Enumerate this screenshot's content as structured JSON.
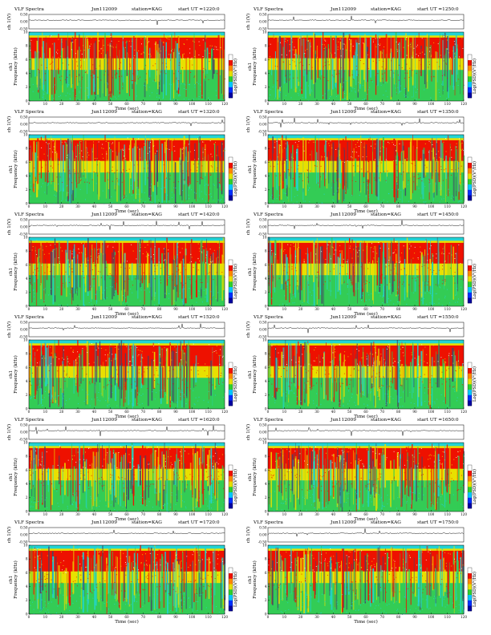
{
  "panels": [
    {
      "title": "VLF Spectra",
      "date": "Jun112009",
      "station": "station=KAG",
      "start": "start  UT  =1220:0"
    },
    {
      "title": "VLF Spectra",
      "date": "Jun112009",
      "station": "station=KAG",
      "start": "start  UT  =1250:0"
    },
    {
      "title": "VLF Spectra",
      "date": "Jun112009",
      "station": "station=KAG",
      "start": "start  UT  =1320:0"
    },
    {
      "title": "VLF Spectra",
      "date": "Jun112009",
      "station": "station=KAG",
      "start": "start  UT  =1350:0"
    },
    {
      "title": "VLF Spectra",
      "date": "Jun112009",
      "station": "station=KAG",
      "start": "start  UT  =1420:0"
    },
    {
      "title": "VLF Spectra",
      "date": "Jun112009",
      "station": "station=KAG",
      "start": "start  UT  =1450:0"
    },
    {
      "title": "VLF Spectra",
      "date": "Jun112009",
      "station": "station=KAG",
      "start": "start  UT  =1520:0"
    },
    {
      "title": "VLF Spectra",
      "date": "Jun112009",
      "station": "station=KAG",
      "start": "start  UT  =1550:0"
    },
    {
      "title": "VLF Spectra",
      "date": "Jun112009",
      "station": "station=KAG",
      "start": "start  UT  =1620:0"
    },
    {
      "title": "VLF Spectra",
      "date": "Jun112009",
      "station": "station=KAG",
      "start": "start  UT  =1650:0"
    },
    {
      "title": "VLF Spectra",
      "date": "Jun112009",
      "station": "station=KAG",
      "start": "start  UT  =1720:0"
    },
    {
      "title": "VLF Spectra",
      "date": "Jun112009",
      "station": "station=KAG",
      "start": "start  UT  =1750:0"
    }
  ],
  "labels": {
    "waveform_ylabel": "ch 1(V)",
    "spec_ylabel_line1": "ch1",
    "spec_ylabel_line2": "Frequency  (kHz)",
    "xlabel": "Time  (sec)",
    "colorbar_label": "Log(PSD)(V²/Hz)"
  },
  "colors": {
    "background_band": "#22d4d4",
    "low_freq": "#33cc55",
    "mid_freq": "#e8e000",
    "high_freq": "#ee1100",
    "colorbar": [
      "#0000a0",
      "#0030ff",
      "#00c8ff",
      "#2ed02e",
      "#e8e000",
      "#ff8800",
      "#ee1100",
      "#ffffff"
    ]
  },
  "chart_data": [
    {
      "type": "heatmap",
      "title": "VLF Spectra  Jun112009  station=KAG  start  UT  =1220:0",
      "xlabel": "Time  (sec)",
      "ylabel": "Frequency  (kHz)",
      "xlim": [
        0,
        120
      ],
      "ylim": [
        0,
        10
      ],
      "x_ticks": [
        0,
        10,
        20,
        30,
        40,
        50,
        60,
        70,
        80,
        90,
        100,
        110,
        120
      ],
      "y_ticks": [
        0,
        2,
        4,
        6,
        8,
        10
      ],
      "waveform_ylim": [
        -0.5,
        0.5
      ],
      "waveform_ticks": [
        "0.50",
        "0.00",
        "-0.50"
      ]
    },
    {
      "type": "heatmap",
      "title": "VLF Spectra  Jun112009  station=KAG  start  UT  =1250:0",
      "xlabel": "Time  (sec)",
      "ylabel": "Frequency  (kHz)",
      "xlim": [
        0,
        120
      ],
      "ylim": [
        0,
        10
      ],
      "x_ticks": [
        0,
        10,
        20,
        30,
        40,
        50,
        60,
        70,
        80,
        90,
        100,
        110,
        120
      ],
      "y_ticks": [
        0,
        2,
        4,
        6,
        8,
        10
      ],
      "waveform_ylim": [
        -0.5,
        0.5
      ],
      "waveform_ticks": [
        "0.50",
        "0.00",
        "-0.50"
      ]
    },
    {
      "type": "heatmap",
      "title": "VLF Spectra  Jun112009  station=KAG  start  UT  =1320:0",
      "xlabel": "Time  (sec)",
      "ylabel": "Frequency  (kHz)",
      "xlim": [
        0,
        120
      ],
      "ylim": [
        0,
        10
      ],
      "x_ticks": [
        0,
        10,
        20,
        30,
        40,
        50,
        60,
        70,
        80,
        90,
        100,
        110,
        120
      ],
      "y_ticks": [
        0,
        2,
        4,
        6,
        8,
        10
      ],
      "waveform_ylim": [
        -0.5,
        0.5
      ],
      "waveform_ticks": [
        "0.50",
        "0.00",
        "-0.50"
      ]
    },
    {
      "type": "heatmap",
      "title": "VLF Spectra  Jun112009  station=KAG  start  UT  =1350:0",
      "xlabel": "Time  (sec)",
      "ylabel": "Frequency  (kHz)",
      "xlim": [
        0,
        120
      ],
      "ylim": [
        0,
        10
      ],
      "x_ticks": [
        0,
        10,
        20,
        30,
        40,
        50,
        60,
        70,
        80,
        90,
        100,
        110,
        120
      ],
      "y_ticks": [
        0,
        2,
        4,
        6,
        8,
        10
      ],
      "waveform_ylim": [
        -0.5,
        0.5
      ],
      "waveform_ticks": [
        "0.50",
        "0.00",
        "-0.50"
      ]
    },
    {
      "type": "heatmap",
      "title": "VLF Spectra  Jun112009  station=KAG  start  UT  =1420:0",
      "xlabel": "Time  (sec)",
      "ylabel": "Frequency  (kHz)",
      "xlim": [
        0,
        120
      ],
      "ylim": [
        0,
        10
      ],
      "x_ticks": [
        0,
        10,
        20,
        30,
        40,
        50,
        60,
        70,
        80,
        90,
        100,
        110,
        120
      ],
      "y_ticks": [
        0,
        2,
        4,
        6,
        8,
        10
      ],
      "waveform_ylim": [
        -0.5,
        0.5
      ],
      "waveform_ticks": [
        "0.50",
        "0.00",
        "-0.50"
      ]
    },
    {
      "type": "heatmap",
      "title": "VLF Spectra  Jun112009  station=KAG  start  UT  =1450:0",
      "xlabel": "Time  (sec)",
      "ylabel": "Frequency  (kHz)",
      "xlim": [
        0,
        120
      ],
      "ylim": [
        0,
        10
      ],
      "x_ticks": [
        0,
        10,
        20,
        30,
        40,
        50,
        60,
        70,
        80,
        90,
        100,
        110,
        120
      ],
      "y_ticks": [
        0,
        2,
        4,
        6,
        8,
        10
      ],
      "waveform_ylim": [
        -0.5,
        0.5
      ],
      "waveform_ticks": [
        "0.50",
        "0.00",
        "-0.50"
      ]
    },
    {
      "type": "heatmap",
      "title": "VLF Spectra  Jun112009  station=KAG  start  UT  =1520:0",
      "xlabel": "Time  (sec)",
      "ylabel": "Frequency  (kHz)",
      "xlim": [
        0,
        120
      ],
      "ylim": [
        0,
        10
      ],
      "x_ticks": [
        0,
        10,
        20,
        30,
        40,
        50,
        60,
        70,
        80,
        90,
        100,
        110,
        120
      ],
      "y_ticks": [
        0,
        2,
        4,
        6,
        8,
        10
      ],
      "waveform_ylim": [
        -0.5,
        0.5
      ],
      "waveform_ticks": [
        "0.50",
        "0.00",
        "-0.50"
      ]
    },
    {
      "type": "heatmap",
      "title": "VLF Spectra  Jun112009  station=KAG  start  UT  =1550:0",
      "xlabel": "Time  (sec)",
      "ylabel": "Frequency  (kHz)",
      "xlim": [
        0,
        120
      ],
      "ylim": [
        0,
        10
      ],
      "x_ticks": [
        0,
        10,
        20,
        30,
        40,
        50,
        60,
        70,
        80,
        90,
        100,
        110,
        120
      ],
      "y_ticks": [
        0,
        2,
        4,
        6,
        8,
        10
      ],
      "waveform_ylim": [
        -0.5,
        0.5
      ],
      "waveform_ticks": [
        "0.50",
        "0.00",
        "-0.50"
      ]
    },
    {
      "type": "heatmap",
      "title": "VLF Spectra  Jun112009  station=KAG  start  UT  =1620:0",
      "xlabel": "Time  (sec)",
      "ylabel": "Frequency  (kHz)",
      "xlim": [
        0,
        120
      ],
      "ylim": [
        0,
        10
      ],
      "x_ticks": [
        0,
        10,
        20,
        30,
        40,
        50,
        60,
        70,
        80,
        90,
        100,
        110,
        120
      ],
      "y_ticks": [
        0,
        2,
        4,
        6,
        8,
        10
      ],
      "waveform_ylim": [
        -0.5,
        0.5
      ],
      "waveform_ticks": [
        "0.50",
        "0.00",
        "-0.50"
      ]
    },
    {
      "type": "heatmap",
      "title": "VLF Spectra  Jun112009  station=KAG  start  UT  =1650:0",
      "xlabel": "Time  (sec)",
      "ylabel": "Frequency  (kHz)",
      "xlim": [
        0,
        120
      ],
      "ylim": [
        0,
        10
      ],
      "x_ticks": [
        0,
        10,
        20,
        30,
        40,
        50,
        60,
        70,
        80,
        90,
        100,
        110,
        120
      ],
      "y_ticks": [
        0,
        2,
        4,
        6,
        8,
        10
      ],
      "waveform_ylim": [
        -0.5,
        0.5
      ],
      "waveform_ticks": [
        "0.50",
        "0.00",
        "-0.50"
      ]
    },
    {
      "type": "heatmap",
      "title": "VLF Spectra  Jun112009  station=KAG  start  UT  =1720:0",
      "xlabel": "Time  (sec)",
      "ylabel": "Frequency  (kHz)",
      "xlim": [
        0,
        120
      ],
      "ylim": [
        0,
        10
      ],
      "x_ticks": [
        0,
        10,
        20,
        30,
        40,
        50,
        60,
        70,
        80,
        90,
        100,
        110,
        120
      ],
      "y_ticks": [
        0,
        2,
        4,
        6,
        8,
        10
      ],
      "waveform_ylim": [
        -0.5,
        0.5
      ],
      "waveform_ticks": [
        "0.50",
        "0.00",
        "-0.50"
      ]
    },
    {
      "type": "heatmap",
      "title": "VLF Spectra  Jun112009  station=KAG  start  UT  =1750:0",
      "xlabel": "Time  (sec)",
      "ylabel": "Frequency  (kHz)",
      "xlim": [
        0,
        120
      ],
      "ylim": [
        0,
        10
      ],
      "x_ticks": [
        0,
        10,
        20,
        30,
        40,
        50,
        60,
        70,
        80,
        90,
        100,
        110,
        120
      ],
      "y_ticks": [
        0,
        2,
        4,
        6,
        8,
        10
      ],
      "waveform_ylim": [
        -0.5,
        0.5
      ],
      "waveform_ticks": [
        "0.50",
        "0.00",
        "-0.50"
      ]
    }
  ]
}
